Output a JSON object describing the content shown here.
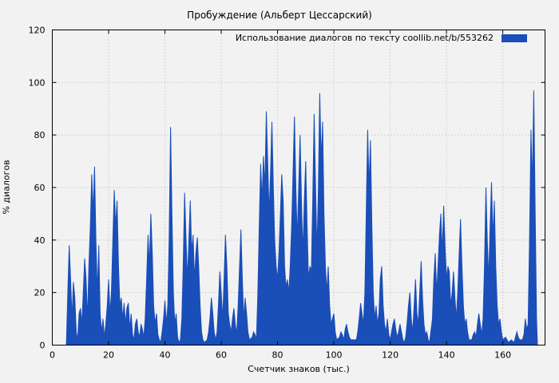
{
  "chart_data": {
    "type": "area",
    "title": "Пробуждение (Альберт Цессарский)",
    "legend_label": "Использование диалогов по тексту  coollib.net/b/553262",
    "xlabel": "Счетчик знаков (тыс.)",
    "ylabel": "% диалогов",
    "xlim": [
      0,
      175
    ],
    "ylim": [
      0,
      120
    ],
    "xticks": [
      0,
      20,
      40,
      60,
      80,
      100,
      120,
      140,
      160
    ],
    "yticks": [
      0,
      20,
      40,
      60,
      80,
      100,
      120
    ],
    "grid": true,
    "legend_position": "top-right-inside",
    "color": "#1a4eb8",
    "background": "#f2f2f2",
    "points": [
      [
        5,
        0
      ],
      [
        5.5,
        20
      ],
      [
        6,
        38
      ],
      [
        6.5,
        25
      ],
      [
        7,
        10
      ],
      [
        7.5,
        24
      ],
      [
        8,
        18
      ],
      [
        8.5,
        5
      ],
      [
        9,
        2
      ],
      [
        9.5,
        12
      ],
      [
        10,
        14
      ],
      [
        10.5,
        8
      ],
      [
        11,
        20
      ],
      [
        11.5,
        33
      ],
      [
        12,
        25
      ],
      [
        12.5,
        10
      ],
      [
        13,
        30
      ],
      [
        13.5,
        45
      ],
      [
        14,
        65
      ],
      [
        14.5,
        50
      ],
      [
        15,
        68
      ],
      [
        15.5,
        40
      ],
      [
        16,
        20
      ],
      [
        16.5,
        38
      ],
      [
        17,
        12
      ],
      [
        17.5,
        5
      ],
      [
        18,
        10
      ],
      [
        18.5,
        3
      ],
      [
        19,
        8
      ],
      [
        19.5,
        15
      ],
      [
        20,
        25
      ],
      [
        20.5,
        12
      ],
      [
        21,
        20
      ],
      [
        21.5,
        40
      ],
      [
        22,
        59
      ],
      [
        22.5,
        45
      ],
      [
        23,
        55
      ],
      [
        23.5,
        30
      ],
      [
        24,
        15
      ],
      [
        24.5,
        18
      ],
      [
        25,
        10
      ],
      [
        25.5,
        16
      ],
      [
        26,
        8
      ],
      [
        26.5,
        14
      ],
      [
        27,
        16
      ],
      [
        27.5,
        6
      ],
      [
        28,
        12
      ],
      [
        28.5,
        4
      ],
      [
        29,
        2
      ],
      [
        29.5,
        8
      ],
      [
        30,
        10
      ],
      [
        30.5,
        5
      ],
      [
        31,
        3
      ],
      [
        31.5,
        8
      ],
      [
        32,
        6
      ],
      [
        32.5,
        3
      ],
      [
        33,
        10
      ],
      [
        33.5,
        25
      ],
      [
        34,
        42
      ],
      [
        34.5,
        30
      ],
      [
        35,
        50
      ],
      [
        35.5,
        35
      ],
      [
        36,
        15
      ],
      [
        36.5,
        8
      ],
      [
        37,
        12
      ],
      [
        37.5,
        4
      ],
      [
        38,
        2
      ],
      [
        38.5,
        1
      ],
      [
        39,
        5
      ],
      [
        39.5,
        10
      ],
      [
        40,
        17
      ],
      [
        40.5,
        8
      ],
      [
        41,
        15
      ],
      [
        41.5,
        40
      ],
      [
        42,
        83
      ],
      [
        42.5,
        50
      ],
      [
        43,
        20
      ],
      [
        43.5,
        8
      ],
      [
        44,
        12
      ],
      [
        44.5,
        3
      ],
      [
        45,
        1
      ],
      [
        45.5,
        2
      ],
      [
        46,
        10
      ],
      [
        46.5,
        30
      ],
      [
        47,
        58
      ],
      [
        47.5,
        40
      ],
      [
        48,
        25
      ],
      [
        48.5,
        40
      ],
      [
        49,
        55
      ],
      [
        49.5,
        35
      ],
      [
        50,
        42
      ],
      [
        50.5,
        25
      ],
      [
        51,
        35
      ],
      [
        51.5,
        41
      ],
      [
        52,
        30
      ],
      [
        52.5,
        15
      ],
      [
        53,
        5
      ],
      [
        53.5,
        2
      ],
      [
        54,
        1
      ],
      [
        55,
        2
      ],
      [
        55.5,
        5
      ],
      [
        56,
        10
      ],
      [
        56.5,
        18
      ],
      [
        57,
        12
      ],
      [
        57.5,
        5
      ],
      [
        58,
        2
      ],
      [
        58.5,
        5
      ],
      [
        59,
        15
      ],
      [
        59.5,
        28
      ],
      [
        60,
        20
      ],
      [
        60.5,
        10
      ],
      [
        61,
        25
      ],
      [
        61.5,
        42
      ],
      [
        62,
        30
      ],
      [
        62.5,
        12
      ],
      [
        63,
        8
      ],
      [
        63.5,
        5
      ],
      [
        64,
        10
      ],
      [
        64.5,
        14
      ],
      [
        65,
        8
      ],
      [
        65.5,
        4
      ],
      [
        66,
        15
      ],
      [
        66.5,
        30
      ],
      [
        67,
        44
      ],
      [
        67.5,
        25
      ],
      [
        68,
        10
      ],
      [
        68.5,
        18
      ],
      [
        69,
        12
      ],
      [
        69.5,
        5
      ],
      [
        70,
        2
      ],
      [
        71,
        3
      ],
      [
        71.5,
        5
      ],
      [
        72,
        4
      ],
      [
        72.5,
        2
      ],
      [
        73,
        20
      ],
      [
        73.5,
        45
      ],
      [
        74,
        69
      ],
      [
        74.5,
        55
      ],
      [
        75,
        72
      ],
      [
        75.5,
        60
      ],
      [
        76,
        89
      ],
      [
        76.5,
        70
      ],
      [
        77,
        50
      ],
      [
        77.5,
        65
      ],
      [
        78,
        85
      ],
      [
        78.5,
        60
      ],
      [
        79,
        40
      ],
      [
        79.5,
        30
      ],
      [
        80,
        25
      ],
      [
        80.5,
        35
      ],
      [
        81,
        50
      ],
      [
        81.5,
        65
      ],
      [
        82,
        55
      ],
      [
        82.5,
        30
      ],
      [
        83,
        22
      ],
      [
        83.5,
        25
      ],
      [
        84,
        20
      ],
      [
        84.5,
        30
      ],
      [
        85,
        45
      ],
      [
        85.5,
        65
      ],
      [
        86,
        87
      ],
      [
        86.5,
        60
      ],
      [
        87,
        40
      ],
      [
        87.5,
        60
      ],
      [
        88,
        80
      ],
      [
        88.5,
        55
      ],
      [
        89,
        35
      ],
      [
        89.5,
        55
      ],
      [
        90,
        70
      ],
      [
        90.5,
        45
      ],
      [
        91,
        25
      ],
      [
        91.5,
        30
      ],
      [
        92,
        28
      ],
      [
        92.5,
        55
      ],
      [
        93,
        88
      ],
      [
        93.5,
        60
      ],
      [
        94,
        35
      ],
      [
        94.5,
        60
      ],
      [
        95,
        96
      ],
      [
        95.5,
        70
      ],
      [
        96,
        85
      ],
      [
        96.5,
        50
      ],
      [
        97,
        30
      ],
      [
        97.5,
        20
      ],
      [
        98,
        30
      ],
      [
        98.5,
        15
      ],
      [
        99,
        8
      ],
      [
        99.5,
        10
      ],
      [
        100,
        12
      ],
      [
        100.5,
        5
      ],
      [
        101,
        2
      ],
      [
        102,
        3
      ],
      [
        102.5,
        5
      ],
      [
        103,
        4
      ],
      [
        103.5,
        2
      ],
      [
        104,
        6
      ],
      [
        104.5,
        8
      ],
      [
        105,
        5
      ],
      [
        105.5,
        3
      ],
      [
        106,
        2
      ],
      [
        107,
        2
      ],
      [
        108,
        2
      ],
      [
        108.5,
        5
      ],
      [
        109,
        10
      ],
      [
        109.5,
        16
      ],
      [
        110,
        12
      ],
      [
        110.5,
        8
      ],
      [
        111,
        20
      ],
      [
        111.5,
        50
      ],
      [
        112,
        82
      ],
      [
        112.5,
        60
      ],
      [
        113,
        78
      ],
      [
        113.5,
        45
      ],
      [
        114,
        20
      ],
      [
        114.5,
        10
      ],
      [
        115,
        15
      ],
      [
        115.5,
        8
      ],
      [
        116,
        12
      ],
      [
        116.5,
        25
      ],
      [
        117,
        30
      ],
      [
        117.5,
        15
      ],
      [
        118,
        8
      ],
      [
        118.5,
        5
      ],
      [
        119,
        10
      ],
      [
        119.5,
        4
      ],
      [
        120,
        2
      ],
      [
        120.5,
        5
      ],
      [
        121,
        8
      ],
      [
        121.5,
        10
      ],
      [
        122,
        6
      ],
      [
        122.5,
        3
      ],
      [
        123,
        5
      ],
      [
        123.5,
        8
      ],
      [
        124,
        5
      ],
      [
        124.5,
        2
      ],
      [
        125,
        1
      ],
      [
        125.5,
        3
      ],
      [
        126,
        8
      ],
      [
        126.5,
        15
      ],
      [
        127,
        20
      ],
      [
        127.5,
        10
      ],
      [
        128,
        5
      ],
      [
        128.5,
        15
      ],
      [
        129,
        25
      ],
      [
        129.5,
        12
      ],
      [
        130,
        8
      ],
      [
        130.5,
        20
      ],
      [
        131,
        32
      ],
      [
        131.5,
        18
      ],
      [
        132,
        8
      ],
      [
        132.5,
        4
      ],
      [
        133,
        5
      ],
      [
        133.5,
        2
      ],
      [
        134,
        1
      ],
      [
        135,
        10
      ],
      [
        135.5,
        25
      ],
      [
        136,
        35
      ],
      [
        136.5,
        20
      ],
      [
        137,
        30
      ],
      [
        137.5,
        42
      ],
      [
        138,
        50
      ],
      [
        138.5,
        35
      ],
      [
        139,
        53
      ],
      [
        139.5,
        38
      ],
      [
        140,
        25
      ],
      [
        140.5,
        30
      ],
      [
        141,
        28
      ],
      [
        141.5,
        15
      ],
      [
        142,
        20
      ],
      [
        142.5,
        28
      ],
      [
        143,
        18
      ],
      [
        143.5,
        10
      ],
      [
        144,
        20
      ],
      [
        144.5,
        35
      ],
      [
        145,
        48
      ],
      [
        145.5,
        30
      ],
      [
        146,
        15
      ],
      [
        146.5,
        8
      ],
      [
        147,
        10
      ],
      [
        147.5,
        5
      ],
      [
        148,
        2
      ],
      [
        149,
        2
      ],
      [
        149.5,
        4
      ],
      [
        150,
        5
      ],
      [
        150.5,
        3
      ],
      [
        151,
        8
      ],
      [
        151.5,
        12
      ],
      [
        152,
        8
      ],
      [
        152.5,
        4
      ],
      [
        153,
        10
      ],
      [
        153.5,
        30
      ],
      [
        154,
        60
      ],
      [
        154.5,
        40
      ],
      [
        155,
        25
      ],
      [
        155.5,
        45
      ],
      [
        156,
        62
      ],
      [
        156.5,
        40
      ],
      [
        157,
        55
      ],
      [
        157.5,
        30
      ],
      [
        158,
        15
      ],
      [
        158.5,
        8
      ],
      [
        159,
        10
      ],
      [
        159.5,
        5
      ],
      [
        160,
        2
      ],
      [
        161,
        3
      ],
      [
        162,
        1
      ],
      [
        163,
        2
      ],
      [
        164,
        1
      ],
      [
        164.5,
        3
      ],
      [
        165,
        5
      ],
      [
        165.5,
        3
      ],
      [
        166,
        2
      ],
      [
        167,
        2
      ],
      [
        167.5,
        4
      ],
      [
        168,
        10
      ],
      [
        168.5,
        6
      ],
      [
        169,
        8
      ],
      [
        169.5,
        40
      ],
      [
        170,
        82
      ],
      [
        170.5,
        60
      ],
      [
        171,
        97
      ],
      [
        171.5,
        50
      ],
      [
        172,
        10
      ],
      [
        172.3,
        0
      ]
    ]
  }
}
